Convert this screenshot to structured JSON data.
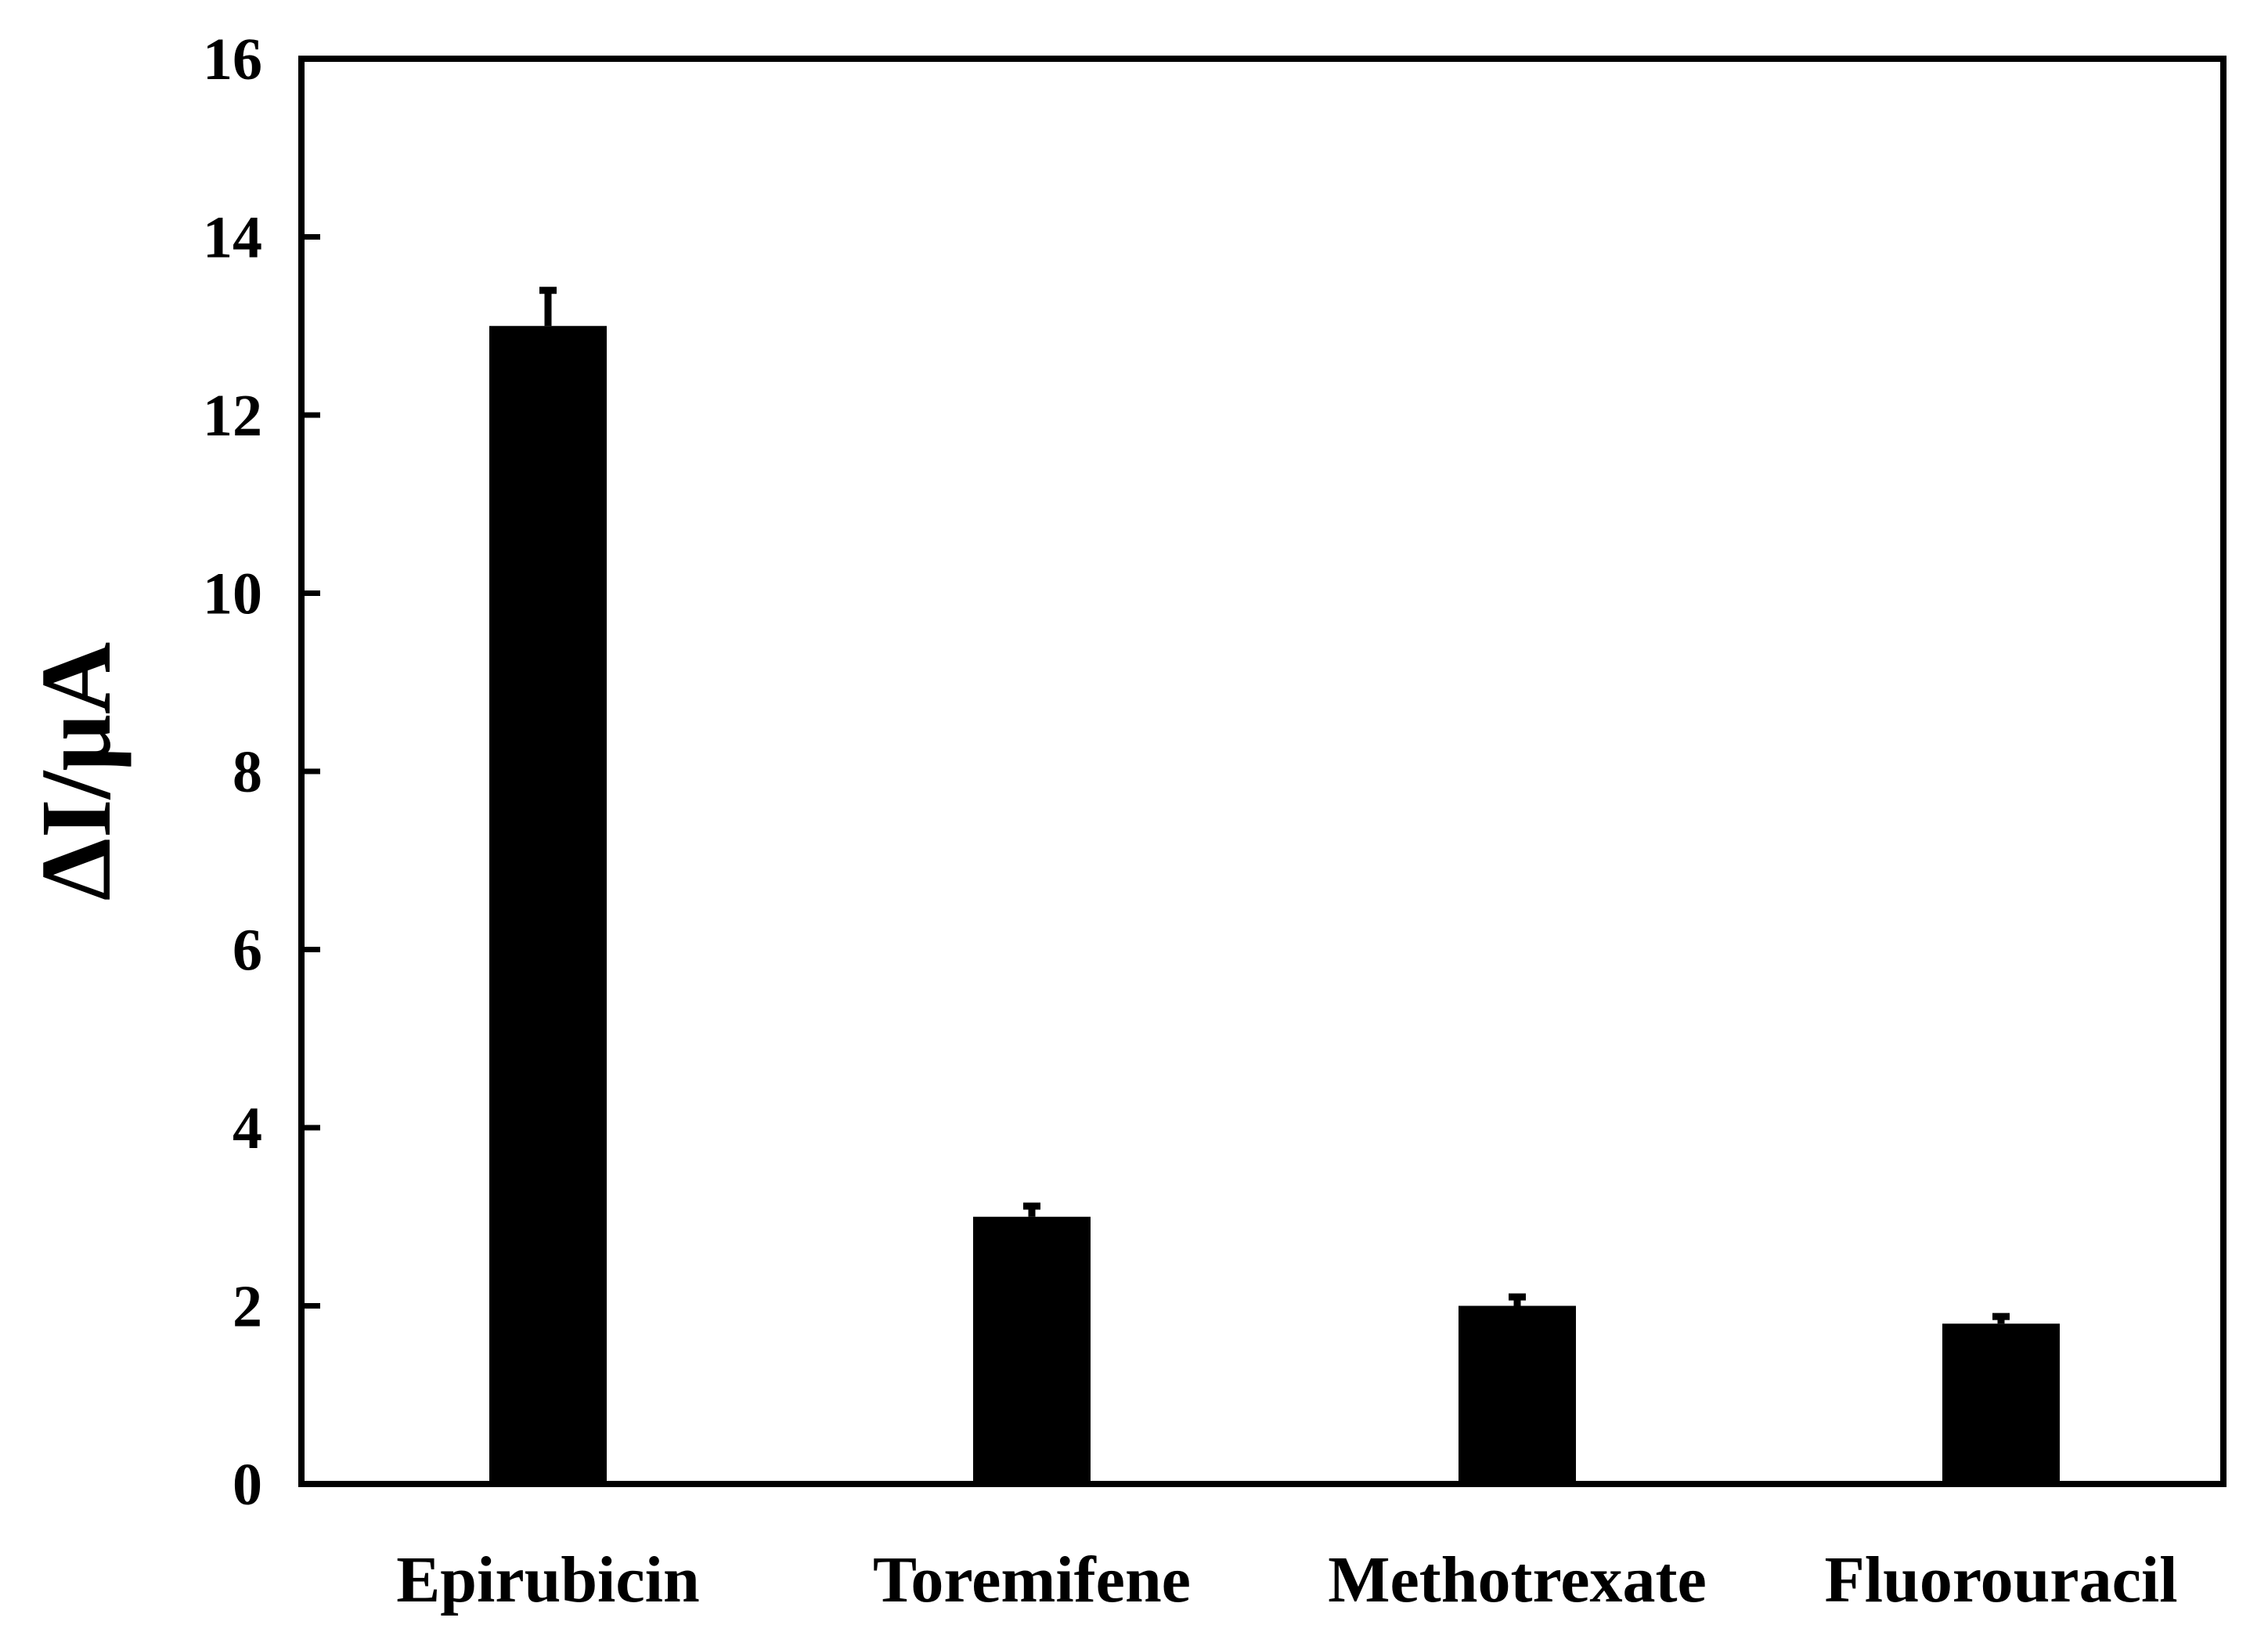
{
  "chart_data": {
    "type": "bar",
    "title": "",
    "xlabel": "",
    "ylabel": "ΔI/μA",
    "categories": [
      "Epirubicin",
      "Toremifene",
      "Methotrexate",
      "Fluorouracil"
    ],
    "values": [
      13.0,
      3.0,
      2.0,
      1.8
    ],
    "errors": [
      0.4,
      0.12,
      0.1,
      0.08
    ],
    "ylim": [
      0,
      16
    ],
    "yticks": [
      0,
      2,
      4,
      6,
      8,
      10,
      12,
      14,
      16
    ],
    "grid": false,
    "legend": "none",
    "bar_color": "#000000",
    "axis_color": "#000000"
  }
}
